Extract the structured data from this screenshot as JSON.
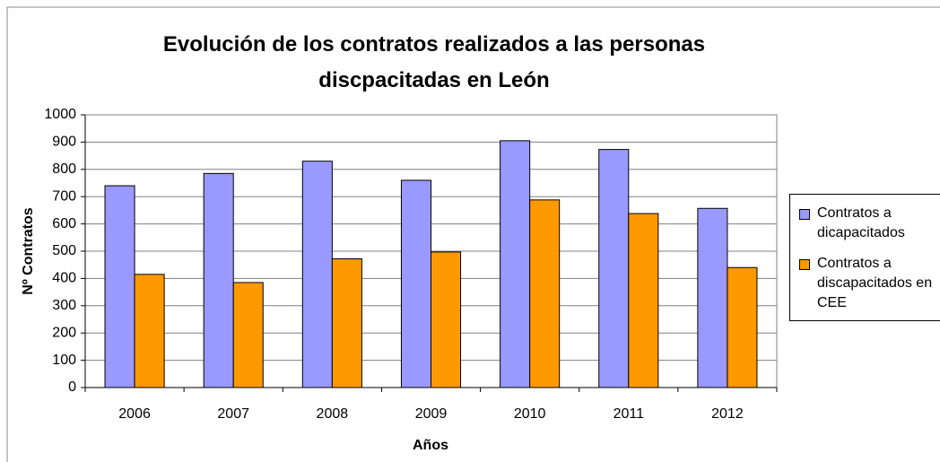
{
  "chart_data": {
    "type": "bar",
    "title": "Evolución de los contratos realizados a las personas discpacitadas en León",
    "x_label": "Años",
    "y_label": "Nº Contratos",
    "categories": [
      "2006",
      "2007",
      "2008",
      "2009",
      "2010",
      "2011",
      "2012"
    ],
    "series": [
      {
        "name": "Contratos a dicapacitados",
        "color": "#9999ff",
        "values": [
          740,
          785,
          830,
          760,
          905,
          873,
          657
        ]
      },
      {
        "name": "Contratos a discapacitados en CEE",
        "color": "#ff9900",
        "values": [
          415,
          385,
          472,
          497,
          688,
          638,
          440
        ]
      }
    ],
    "ylim": [
      0,
      1000
    ],
    "yticks": [
      0,
      100,
      200,
      300,
      400,
      500,
      600,
      700,
      800,
      900,
      1000
    ],
    "grid": true,
    "legend": "right"
  }
}
